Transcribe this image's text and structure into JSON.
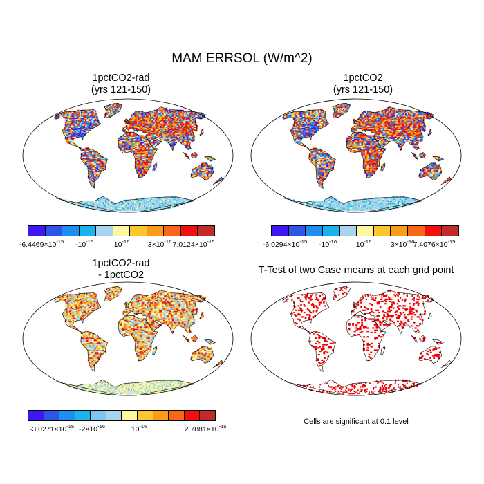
{
  "title": "MAM ERRSOL (W/m^2)",
  "colormap": [
    "#3f16f4",
    "#2d55e6",
    "#1e8ef0",
    "#19b4ee",
    "#a8d5ee",
    "#fff7a0",
    "#fbc72c",
    "#fb9b18",
    "#f8671a",
    "#f4100e",
    "#c32b2b"
  ],
  "colormap_diff": [
    "#3f16f4",
    "#2d55e6",
    "#1e8ef0",
    "#19b4ee",
    "#7fc6ee",
    "#a8d5ee",
    "#fff7a0",
    "#fbc72c",
    "#fb9b18",
    "#f8671a",
    "#f4100e",
    "#c32b2b"
  ],
  "ttest_color": "#ee0000",
  "panels": {
    "p1": {
      "title_line1": "1pctCO2-rad",
      "title_line2": "(yrs 121-150)",
      "labels": [
        {
          "mant": "-6.4469×10",
          "exp": "-15"
        },
        {
          "mant": "-10",
          "exp": "-16"
        },
        {
          "mant": "10",
          "exp": "-16"
        },
        {
          "mant": "3×10",
          "exp": "-16"
        },
        {
          "mant": "7.0124×10",
          "exp": "-15"
        }
      ]
    },
    "p2": {
      "title_line1": "1pctCO2",
      "title_line2": "(yrs 121-150)",
      "labels": [
        {
          "mant": "-6.0294×10",
          "exp": "-15"
        },
        {
          "mant": "-10",
          "exp": "-16"
        },
        {
          "mant": "10",
          "exp": "-16"
        },
        {
          "mant": "3×10",
          "exp": "-16"
        },
        {
          "mant": "7.4076×10",
          "exp": "-15"
        }
      ]
    },
    "p3": {
      "title_line1": "1pctCO2-rad",
      "title_line2": "- 1pctCO2",
      "labels": [
        {
          "mant": "-3.0271×10",
          "exp": "-15"
        },
        {
          "mant": "-2×10",
          "exp": "-16"
        },
        {
          "mant": "10",
          "exp": "-16"
        },
        {
          "mant": "2.7881×10",
          "exp": "-15"
        }
      ]
    },
    "p4": {
      "title": "T-Test of two Case means at each grid point",
      "note": "Cells are significant at 0.1 level"
    }
  }
}
